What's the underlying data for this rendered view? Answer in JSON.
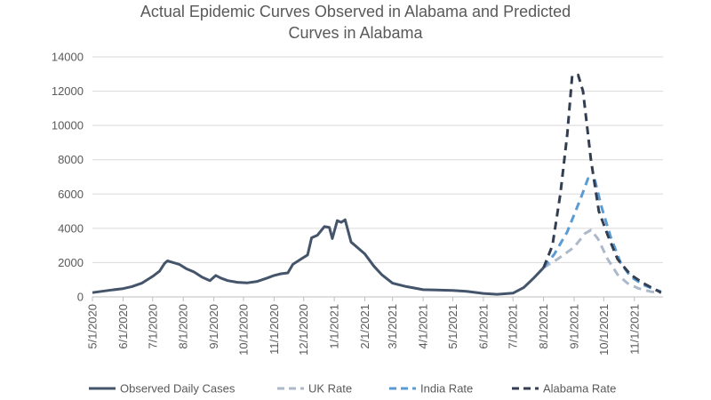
{
  "chart_data": {
    "type": "line",
    "title_line1": "Actual Epidemic Curves Observed in Alabama and Predicted",
    "title_line2": "Curves in Alabama",
    "xlabel": "",
    "ylabel": "",
    "ylim": [
      0,
      14000
    ],
    "y_ticks": [
      "0",
      "2000",
      "4000",
      "6000",
      "8000",
      "10000",
      "12000",
      "14000"
    ],
    "y_tick_values": [
      0,
      2000,
      4000,
      6000,
      8000,
      10000,
      12000,
      14000
    ],
    "x_range": [
      "2020-05-01",
      "2021-11-30"
    ],
    "x_ticks": [
      {
        "label": "5/1/2020",
        "date": "2020-05-01"
      },
      {
        "label": "6/1/2020",
        "date": "2020-06-01"
      },
      {
        "label": "7/1/2020",
        "date": "2020-07-01"
      },
      {
        "label": "8/1/2020",
        "date": "2020-08-01"
      },
      {
        "label": "9/1/2020",
        "date": "2020-09-01"
      },
      {
        "label": "10/1/2020",
        "date": "2020-10-01"
      },
      {
        "label": "11/1/2020",
        "date": "2020-11-01"
      },
      {
        "label": "12/1/2020",
        "date": "2020-12-01"
      },
      {
        "label": "1/1/2021",
        "date": "2021-01-01"
      },
      {
        "label": "2/1/2021",
        "date": "2021-02-01"
      },
      {
        "label": "3/1/2021",
        "date": "2021-03-01"
      },
      {
        "label": "4/1/2021",
        "date": "2021-04-01"
      },
      {
        "label": "5/1/2021",
        "date": "2021-05-01"
      },
      {
        "label": "6/1/2021",
        "date": "2021-06-01"
      },
      {
        "label": "7/1/2021",
        "date": "2021-07-01"
      },
      {
        "label": "8/1/2021",
        "date": "2021-08-01"
      },
      {
        "label": "9/1/2021",
        "date": "2021-09-01"
      },
      {
        "label": "10/1/2021",
        "date": "2021-10-01"
      },
      {
        "label": "11/1/2021",
        "date": "2021-11-01"
      }
    ],
    "grid": "horizontal",
    "legend_position": "bottom",
    "series": [
      {
        "name": "Observed Daily Cases",
        "color": "#44546A",
        "style": "solid",
        "points": [
          [
            "2020-05-01",
            250
          ],
          [
            "2020-05-10",
            320
          ],
          [
            "2020-05-20",
            400
          ],
          [
            "2020-06-01",
            480
          ],
          [
            "2020-06-10",
            600
          ],
          [
            "2020-06-20",
            800
          ],
          [
            "2020-07-01",
            1200
          ],
          [
            "2020-07-08",
            1500
          ],
          [
            "2020-07-13",
            1950
          ],
          [
            "2020-07-16",
            2100
          ],
          [
            "2020-07-22",
            2000
          ],
          [
            "2020-07-28",
            1900
          ],
          [
            "2020-08-04",
            1650
          ],
          [
            "2020-08-12",
            1450
          ],
          [
            "2020-08-20",
            1150
          ],
          [
            "2020-08-28",
            950
          ],
          [
            "2020-09-03",
            1250
          ],
          [
            "2020-09-08",
            1100
          ],
          [
            "2020-09-15",
            950
          ],
          [
            "2020-09-25",
            850
          ],
          [
            "2020-10-05",
            820
          ],
          [
            "2020-10-15",
            900
          ],
          [
            "2020-10-25",
            1100
          ],
          [
            "2020-11-01",
            1250
          ],
          [
            "2020-11-08",
            1350
          ],
          [
            "2020-11-15",
            1400
          ],
          [
            "2020-11-20",
            1900
          ],
          [
            "2020-11-28",
            2200
          ],
          [
            "2020-12-05",
            2450
          ],
          [
            "2020-12-09",
            3450
          ],
          [
            "2020-12-15",
            3600
          ],
          [
            "2020-12-22",
            4100
          ],
          [
            "2020-12-27",
            4050
          ],
          [
            "2020-12-30",
            3400
          ],
          [
            "2021-01-04",
            4450
          ],
          [
            "2021-01-08",
            4350
          ],
          [
            "2021-01-12",
            4500
          ],
          [
            "2021-01-18",
            3200
          ],
          [
            "2021-01-25",
            2850
          ],
          [
            "2021-02-01",
            2500
          ],
          [
            "2021-02-10",
            1800
          ],
          [
            "2021-02-18",
            1300
          ],
          [
            "2021-03-01",
            800
          ],
          [
            "2021-03-15",
            600
          ],
          [
            "2021-04-01",
            420
          ],
          [
            "2021-04-15",
            400
          ],
          [
            "2021-05-01",
            380
          ],
          [
            "2021-05-15",
            320
          ],
          [
            "2021-06-01",
            200
          ],
          [
            "2021-06-15",
            150
          ],
          [
            "2021-07-01",
            220
          ],
          [
            "2021-07-12",
            550
          ],
          [
            "2021-07-22",
            1100
          ],
          [
            "2021-08-01",
            1700
          ]
        ]
      },
      {
        "name": "UK Rate",
        "color": "#ADB9CA",
        "style": "dashed",
        "points": [
          [
            "2021-08-01",
            1700
          ],
          [
            "2021-08-15",
            2200
          ],
          [
            "2021-09-01",
            2900
          ],
          [
            "2021-09-12",
            3700
          ],
          [
            "2021-09-18",
            3900
          ],
          [
            "2021-09-25",
            3400
          ],
          [
            "2021-10-05",
            2200
          ],
          [
            "2021-10-15",
            1300
          ],
          [
            "2021-10-25",
            800
          ],
          [
            "2021-11-05",
            500
          ],
          [
            "2021-11-18",
            300
          ],
          [
            "2021-11-28",
            250
          ]
        ]
      },
      {
        "name": "India Rate",
        "color": "#5B9BD5",
        "style": "dashed",
        "points": [
          [
            "2021-08-01",
            1700
          ],
          [
            "2021-08-12",
            2500
          ],
          [
            "2021-08-25",
            3800
          ],
          [
            "2021-09-08",
            5800
          ],
          [
            "2021-09-15",
            6900
          ],
          [
            "2021-09-22",
            6800
          ],
          [
            "2021-09-29",
            5200
          ],
          [
            "2021-10-08",
            3500
          ],
          [
            "2021-10-18",
            2000
          ],
          [
            "2021-10-28",
            1200
          ],
          [
            "2021-11-10",
            700
          ],
          [
            "2021-11-28",
            300
          ]
        ]
      },
      {
        "name": "Alabama Rate",
        "color": "#333F50",
        "style": "dashed",
        "points": [
          [
            "2021-08-01",
            1700
          ],
          [
            "2021-08-10",
            3000
          ],
          [
            "2021-08-18",
            6000
          ],
          [
            "2021-08-25",
            9500
          ],
          [
            "2021-08-30",
            12900
          ],
          [
            "2021-09-05",
            12950
          ],
          [
            "2021-09-10",
            12000
          ],
          [
            "2021-09-18",
            8000
          ],
          [
            "2021-09-26",
            5000
          ],
          [
            "2021-10-05",
            3600
          ],
          [
            "2021-10-15",
            2200
          ],
          [
            "2021-10-28",
            1300
          ],
          [
            "2021-11-10",
            800
          ],
          [
            "2021-11-28",
            250
          ]
        ]
      }
    ]
  }
}
